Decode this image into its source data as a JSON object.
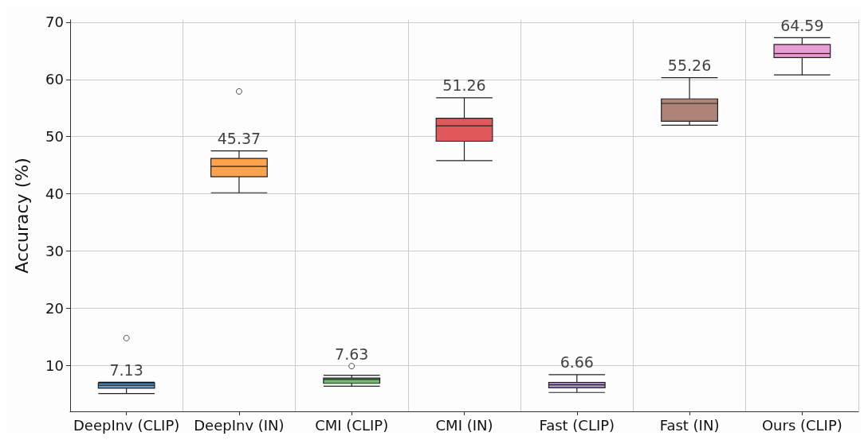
{
  "chart_data": {
    "type": "box",
    "ylabel": "Accuracy (%)",
    "categories": [
      "DeepInv (CLIP)",
      "DeepInv (IN)",
      "CMI (CLIP)",
      "CMI (IN)",
      "Fast (CLIP)",
      "Fast (IN)",
      "Ours (CLIP)"
    ],
    "boxes": [
      {
        "low": 5.1,
        "q1": 6.05,
        "median": 6.57,
        "q3": 6.96,
        "high": 7.1,
        "outliers": [
          14.8
        ]
      },
      {
        "low": 40.2,
        "q1": 43.0,
        "median": 44.8,
        "q3": 46.2,
        "high": 47.5,
        "outliers": [
          57.9
        ]
      },
      {
        "low": 6.4,
        "q1": 6.9,
        "median": 7.58,
        "q3": 7.82,
        "high": 8.3,
        "outliers": [
          9.9
        ]
      },
      {
        "low": 45.8,
        "q1": 49.2,
        "median": 51.9,
        "q3": 53.2,
        "high": 56.8
      },
      {
        "low": 5.3,
        "q1": 6.11,
        "median": 6.64,
        "q3": 7.06,
        "high": 8.4
      },
      {
        "low": 52.0,
        "q1": 52.7,
        "median": 55.8,
        "q3": 56.6,
        "high": 60.3
      },
      {
        "low": 60.8,
        "q1": 63.8,
        "median": 64.5,
        "q3": 66.1,
        "high": 67.3
      }
    ],
    "colors": [
      "#5c9ad0",
      "#ffa24d",
      "#6dbf6d",
      "#e05a5b",
      "#b195cf",
      "#ae8479",
      "#ea9dd3"
    ],
    "annotations": [
      "7.13",
      "45.37",
      "7.63",
      "51.26",
      "6.66",
      "55.26",
      "64.59"
    ],
    "ylim": [
      2,
      70.4
    ],
    "yticks": [
      10,
      20,
      30,
      40,
      50,
      60,
      70
    ],
    "grid": true
  }
}
